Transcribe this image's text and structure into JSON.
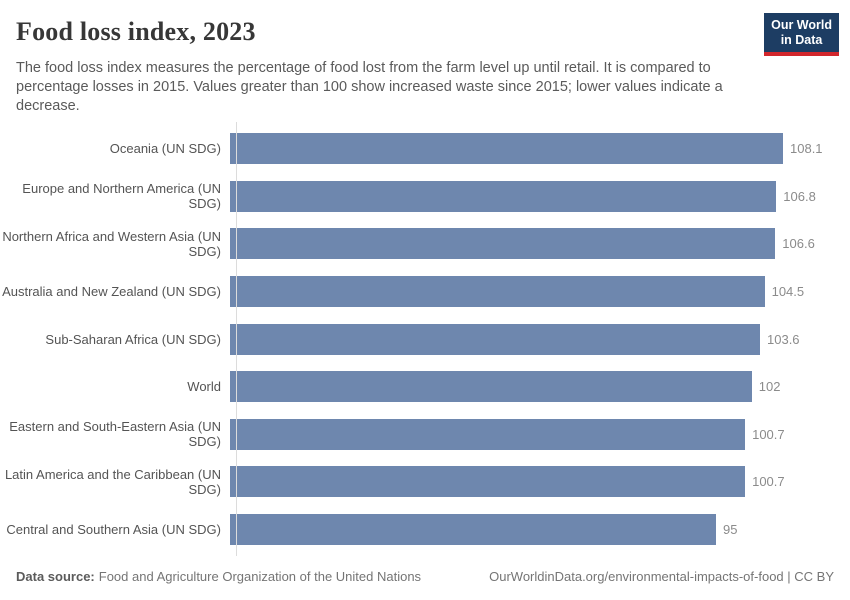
{
  "header": {
    "title": "Food loss index, 2023",
    "subtitle": "The food loss index measures the percentage of food lost from the farm level up until retail. It is compared to percentage losses in 2015. Values greater than 100 show increased waste since 2015; lower values indicate a decrease.",
    "logo": {
      "line1": "Our World",
      "line2": "in Data"
    }
  },
  "chart_data": {
    "type": "bar",
    "orientation": "horizontal",
    "title": "Food loss index, 2023",
    "xlabel": "",
    "ylabel": "",
    "xlim": [
      0,
      108.1
    ],
    "grid": false,
    "legend": "none",
    "bar_color": "#6e87ae",
    "categories": [
      "Oceania (UN SDG)",
      "Europe and Northern America (UN SDG)",
      "Northern Africa and Western Asia (UN SDG)",
      "Australia and New Zealand (UN SDG)",
      "Sub-Saharan Africa (UN SDG)",
      "World",
      "Eastern and South-Eastern Asia (UN SDG)",
      "Latin America and the Caribbean (UN SDG)",
      "Central and Southern Asia (UN SDG)"
    ],
    "values": [
      108.1,
      106.8,
      106.6,
      104.5,
      103.6,
      102,
      100.7,
      100.7,
      95
    ],
    "value_labels": [
      "108.1",
      "106.8",
      "106.6",
      "104.5",
      "103.6",
      "102",
      "100.7",
      "100.7",
      "95"
    ]
  },
  "footer": {
    "data_source_label": "Data source:",
    "data_source_value": "Food and Agriculture Organization of the United Nations",
    "credit": "OurWorldinData.org/environmental-impacts-of-food | CC BY"
  },
  "colors": {
    "bar": "#6e87ae",
    "axis_line": "#dcdcdc",
    "logo_bg": "#1d3d63",
    "logo_accent": "#d2262c",
    "title_text": "#373737",
    "subtitle_text": "#5a5a5a",
    "tick_label_text": "#545454",
    "value_label_text": "#8b8b8b"
  }
}
